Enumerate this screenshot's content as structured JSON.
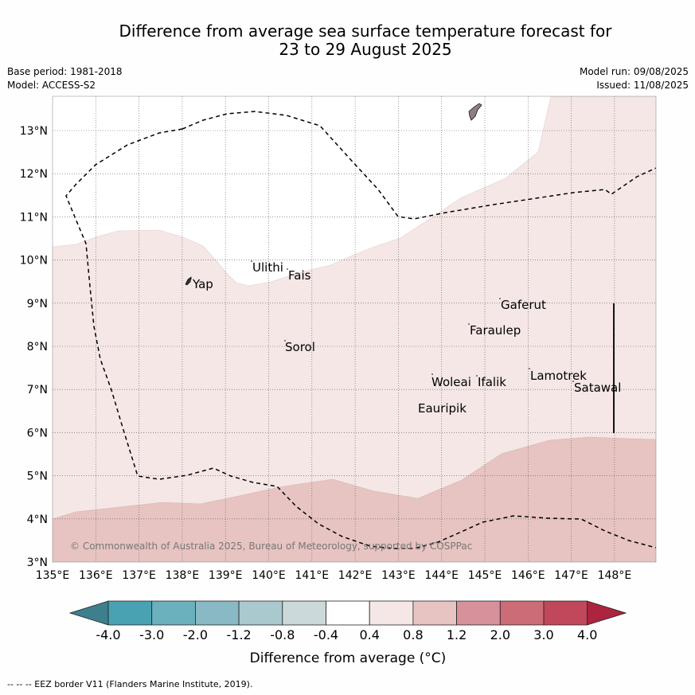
{
  "title_line1": "Difference from average sea surface temperature forecast for",
  "title_line2": "23 to 29 August 2025",
  "base_period": "Base period: 1981-2018",
  "model": "Model: ACCESS-S2",
  "model_run": "Model run: 09/08/2025",
  "issued": "Issued: 11/08/2025",
  "lon_labels": [
    "135°E",
    "136°E",
    "137°E",
    "138°E",
    "139°E",
    "140°E",
    "141°E",
    "142°E",
    "143°E",
    "144°E",
    "145°E",
    "146°E",
    "147°E",
    "148°E"
  ],
  "lat_labels": [
    "3°N",
    "4°N",
    "5°N",
    "6°N",
    "7°N",
    "8°N",
    "9°N",
    "10°N",
    "11°N",
    "12°N",
    "13°N"
  ],
  "places": [
    "Ulithi",
    "Fais",
    "Yap",
    "Gaferut",
    "Faraulep",
    "Sorol",
    "Woleai",
    "Ifalik",
    "Lamotrek",
    "Satawal",
    "Eauripik"
  ],
  "copyright": "© Commonwealth of Australia 2025, Bureau of Meteorology, supported by COSPPac",
  "colorbar": {
    "ticks": [
      "-4.0",
      "-3.0",
      "-2.0",
      "-1.2",
      "-0.8",
      "-0.4",
      "0.4",
      "0.8",
      "1.2",
      "2.0",
      "3.0",
      "4.0"
    ],
    "colors": [
      "#3d7f8d",
      "#49a2b2",
      "#6bb0bd",
      "#89b9c4",
      "#a9c9ce",
      "#cbd9da",
      "#ffffff",
      "#f4e7e6",
      "#e7c4c1",
      "#d7919a",
      "#cc6c77",
      "#c1475a",
      "#ad2440"
    ],
    "label": "Difference from average (°C)",
    "band_colors": {
      "0.4-0.8": "#f4e7e6",
      "0.8-1.2": "#e7c4c1"
    }
  },
  "footnote": "--  --  -- EEZ border V11 (Flanders Marine Institute, 2019)."
}
